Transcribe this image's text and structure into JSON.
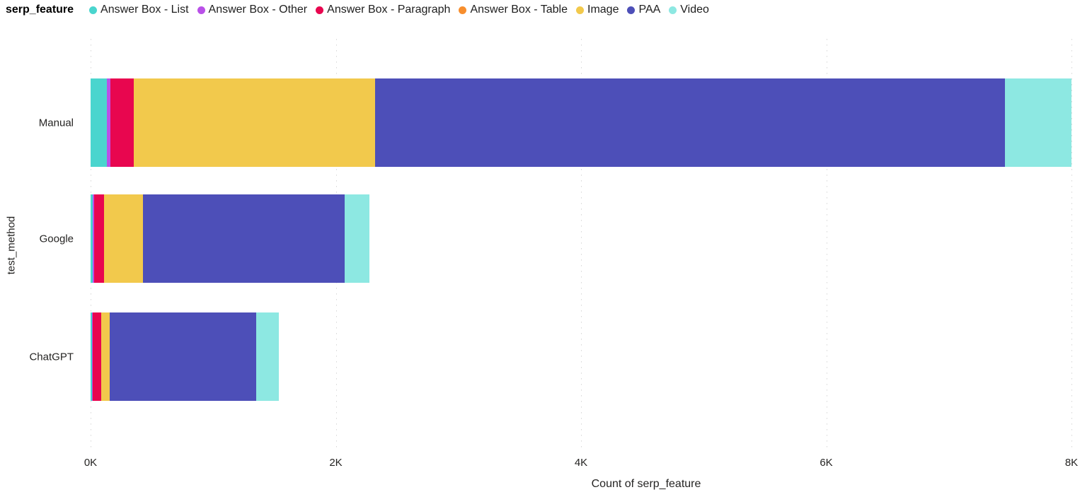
{
  "chart_data": {
    "type": "bar",
    "orientation": "horizontal",
    "stacked": true,
    "legend_title": "serp_feature",
    "legend_position": "top",
    "xlabel": "Count of serp_feature",
    "ylabel": "test_method",
    "categories": [
      "Manual",
      "Google",
      "ChatGPT"
    ],
    "x_ticks": [
      "0K",
      "2K",
      "4K",
      "6K",
      "8K"
    ],
    "xlim": [
      0,
      8000
    ],
    "grid": "vertical-dotted",
    "gridline_color": "#D6D6D6",
    "background_color": "#FFFFFF",
    "series": [
      {
        "name": "Answer Box - List",
        "color": "#4AD5CE",
        "values": [
          130,
          20,
          10
        ]
      },
      {
        "name": "Answer Box - Other",
        "color": "#B950E8",
        "values": [
          30,
          10,
          10
        ]
      },
      {
        "name": "Answer Box - Paragraph",
        "color": "#E8064F",
        "values": [
          190,
          80,
          65
        ]
      },
      {
        "name": "Answer Box - Table",
        "color": "#F78E2D",
        "values": [
          0,
          0,
          0
        ]
      },
      {
        "name": "Image",
        "color": "#F2C94C",
        "values": [
          1970,
          320,
          70
        ]
      },
      {
        "name": "PAA",
        "color": "#4D4FB8",
        "values": [
          5140,
          1640,
          1195
        ]
      },
      {
        "name": "Video",
        "color": "#8DE8E2",
        "values": [
          540,
          205,
          185
        ]
      }
    ],
    "category_totals": [
      8000,
      2275,
      1535
    ]
  }
}
